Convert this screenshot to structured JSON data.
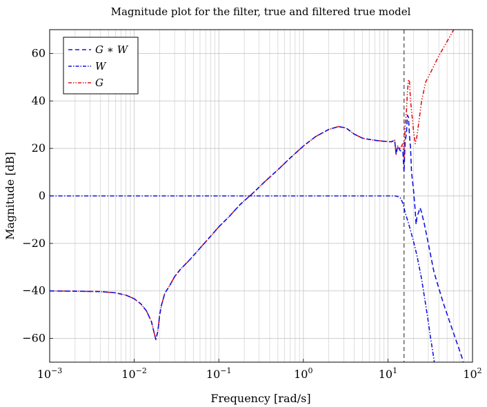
{
  "chart_data": {
    "type": "line",
    "title": "Magnitude plot for the filter, true and filtered true model",
    "xlabel": "Frequency [rad/s]",
    "ylabel": "Magnitude [dB]",
    "xscale": "log",
    "xlim": [
      0.001,
      100
    ],
    "ylim": [
      -70,
      70
    ],
    "grid": true,
    "legend_position": "top-left",
    "x_ticks": [
      {
        "value": 0.001,
        "base": "10",
        "exp": "−3"
      },
      {
        "value": 0.01,
        "base": "10",
        "exp": "−2"
      },
      {
        "value": 0.1,
        "base": "10",
        "exp": "−1"
      },
      {
        "value": 1,
        "base": "10",
        "exp": "0"
      },
      {
        "value": 10,
        "base": "10",
        "exp": "1"
      },
      {
        "value": 100,
        "base": "10",
        "exp": "2"
      }
    ],
    "y_ticks": [
      {
        "value": -60,
        "label": "−60"
      },
      {
        "value": -40,
        "label": "−40"
      },
      {
        "value": -20,
        "label": "−20"
      },
      {
        "value": 0,
        "label": "0"
      },
      {
        "value": 20,
        "label": "20"
      },
      {
        "value": 40,
        "label": "40"
      },
      {
        "value": 60,
        "label": "60"
      }
    ],
    "vline": {
      "x": 15.5,
      "color": "#444444",
      "dash": "dashed"
    },
    "series": [
      {
        "name": "G",
        "legend_label": "G",
        "color": "#e01010",
        "dash": "dash-dot-dot",
        "x": [
          0.001,
          0.002,
          0.004,
          0.006,
          0.008,
          0.01,
          0.012,
          0.014,
          0.016,
          0.017,
          0.018,
          0.019,
          0.02,
          0.021,
          0.023,
          0.026,
          0.03,
          0.035,
          0.045,
          0.06,
          0.08,
          0.1,
          0.13,
          0.18,
          0.25,
          0.35,
          0.5,
          0.7,
          1.0,
          1.4,
          2.0,
          2.6,
          3.2,
          4.0,
          5.0,
          6.0,
          7.5,
          9.0,
          11.0,
          12.0,
          12.5,
          13.0,
          14.0,
          15.0,
          15.5,
          16.0,
          16.5,
          17.0,
          17.5,
          18.0,
          18.5,
          19.0,
          20.0,
          21.0,
          22.0,
          23.0,
          25.0,
          28.0,
          32.0,
          40.0,
          50.0,
          60.0
        ],
        "y": [
          -40,
          -40.1,
          -40.3,
          -40.8,
          -41.8,
          -43.3,
          -45.5,
          -48.5,
          -53,
          -57,
          -60.5,
          -57,
          -50,
          -46,
          -41,
          -38,
          -34,
          -31,
          -27,
          -22,
          -17,
          -13,
          -9,
          -3.5,
          1,
          6,
          11,
          16,
          21,
          25,
          28,
          29.2,
          28.6,
          26,
          24.3,
          23.8,
          23.3,
          23,
          22.8,
          23.5,
          17.5,
          21,
          20,
          22,
          15,
          30,
          35,
          44,
          49,
          48,
          40,
          36,
          28,
          22,
          25,
          30,
          40,
          48,
          52,
          59,
          65,
          70
        ]
      },
      {
        "name": "W",
        "legend_label": "W",
        "color": "#1010e0",
        "dash": "dash-dot",
        "x": [
          0.001,
          0.01,
          0.1,
          1.0,
          5.0,
          10.0,
          12.0,
          13.0,
          14.0,
          15.0,
          16.0,
          18.0,
          20.0,
          22.0,
          25.0,
          28.0,
          30.0,
          32.0,
          34.0,
          36.0
        ],
        "y": [
          0,
          0,
          0,
          0,
          0,
          0,
          0,
          -0.2,
          -0.8,
          -3,
          -7,
          -13,
          -19,
          -25,
          -35,
          -46,
          -53,
          -60,
          -66,
          -72
        ]
      },
      {
        "name": "G * W",
        "legend_label": "G ∗ W",
        "color": "#1010e0",
        "dash": "dashed",
        "x": [
          0.001,
          0.002,
          0.004,
          0.006,
          0.008,
          0.01,
          0.012,
          0.014,
          0.016,
          0.017,
          0.018,
          0.019,
          0.02,
          0.021,
          0.023,
          0.026,
          0.03,
          0.035,
          0.045,
          0.06,
          0.08,
          0.1,
          0.13,
          0.18,
          0.25,
          0.35,
          0.5,
          0.7,
          1.0,
          1.4,
          2.0,
          2.6,
          3.2,
          4.0,
          5.0,
          6.0,
          7.5,
          9.0,
          11.0,
          12.0,
          12.5,
          13.0,
          14.0,
          15.0,
          15.5,
          16.0,
          16.5,
          17.0,
          17.5,
          18.0,
          18.5,
          19.0,
          20.0,
          21.0,
          21.5,
          22.0,
          23.0,
          24.0,
          25.0,
          27.0,
          30.0,
          35.0,
          45.0,
          60.0,
          75.0,
          80.0
        ],
        "y": [
          -40,
          -40.1,
          -40.3,
          -40.8,
          -41.8,
          -43.3,
          -45.5,
          -48.5,
          -53,
          -57,
          -60.5,
          -57,
          -50,
          -46,
          -41,
          -38,
          -34,
          -31,
          -27,
          -22,
          -17,
          -13,
          -9,
          -3.5,
          1,
          6,
          11,
          16,
          21,
          25,
          28,
          29.2,
          28.6,
          26,
          24.3,
          23.8,
          23.3,
          23,
          22.8,
          23.5,
          17.5,
          21,
          19,
          19,
          10,
          23,
          26,
          34,
          33,
          25,
          20,
          10,
          3,
          -6,
          -12,
          -9,
          -7,
          -5,
          -7,
          -12,
          -20,
          -32,
          -45,
          -58,
          -68,
          -72
        ]
      }
    ]
  }
}
